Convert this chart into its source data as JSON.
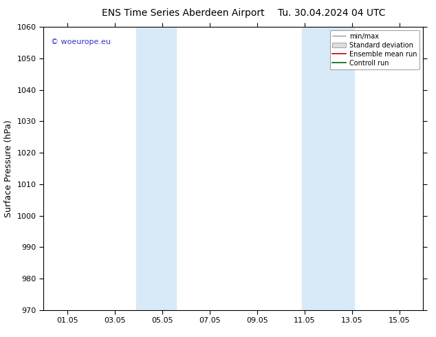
{
  "title_left": "ENS Time Series Aberdeen Airport",
  "title_right": "Tu. 30.04.2024 04 UTC",
  "ylabel": "Surface Pressure (hPa)",
  "ylim": [
    970,
    1060
  ],
  "yticks": [
    970,
    980,
    990,
    1000,
    1010,
    1020,
    1030,
    1040,
    1050,
    1060
  ],
  "xtick_labels": [
    "01.05",
    "03.05",
    "05.05",
    "07.05",
    "09.05",
    "11.05",
    "13.05",
    "15.05"
  ],
  "xtick_positions": [
    1,
    3,
    5,
    7,
    9,
    11,
    13,
    15
  ],
  "xlim": [
    0,
    16
  ],
  "shaded_bands": [
    {
      "x_start": 3.9,
      "x_end": 5.6,
      "color": "#d8eaf8",
      "alpha": 1.0
    },
    {
      "x_start": 10.9,
      "x_end": 13.1,
      "color": "#d8eaf8",
      "alpha": 1.0
    }
  ],
  "watermark": "© woeurope.eu",
  "watermark_color": "#3333cc",
  "legend_entries": [
    "min/max",
    "Standard deviation",
    "Ensemble mean run",
    "Controll run"
  ],
  "legend_line_colors": [
    "#aaaaaa",
    "#cccccc",
    "#cc0000",
    "#006600"
  ],
  "background_color": "#ffffff",
  "plot_bg_color": "#ffffff",
  "title_fontsize": 10,
  "axis_label_fontsize": 9,
  "tick_fontsize": 8,
  "legend_fontsize": 7
}
